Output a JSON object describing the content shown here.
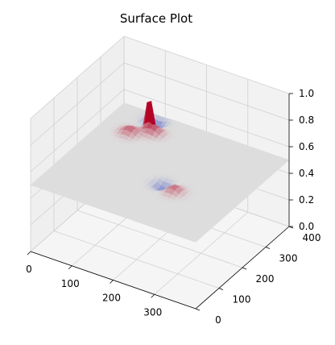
{
  "chart_data": {
    "type": "surface",
    "title": "Surface Plot",
    "xlabel": "",
    "ylabel": "",
    "zlabel": "",
    "colormap": "coolwarm",
    "xlim": [
      0,
      400
    ],
    "ylim": [
      0,
      400
    ],
    "zlim": [
      0,
      1.0
    ],
    "x_ticks": [
      "0",
      "100",
      "200",
      "300"
    ],
    "y_ticks": [
      "0",
      "100",
      "200",
      "300",
      "400"
    ],
    "z_ticks": [
      "0.0",
      "0.2",
      "0.4",
      "0.6",
      "0.8",
      "1.0"
    ],
    "grid": true,
    "baseline_z": 0.5,
    "features": [
      {
        "x": 95,
        "y": 340,
        "z": 0.8,
        "kind": "spike"
      },
      {
        "x": 110,
        "y": 330,
        "z": 0.56,
        "kind": "bump"
      },
      {
        "x": 70,
        "y": 300,
        "z": 0.55,
        "kind": "bump"
      },
      {
        "x": 260,
        "y": 150,
        "z": 0.55,
        "kind": "bump"
      },
      {
        "x": 230,
        "y": 160,
        "z": 0.45,
        "kind": "dip"
      },
      {
        "x": 90,
        "y": 370,
        "z": 0.43,
        "kind": "dip"
      }
    ]
  }
}
